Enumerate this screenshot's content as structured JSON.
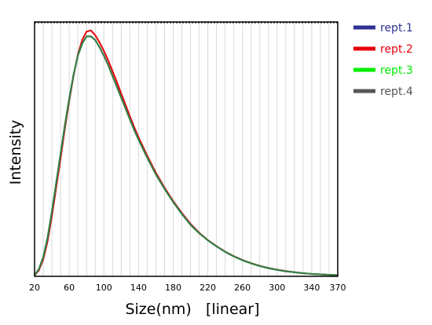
{
  "chart_data": {
    "type": "line",
    "title": "",
    "xlabel": "Size(nm)   [linear]",
    "ylabel": "Intensity",
    "xlim": [
      20,
      370
    ],
    "x_ticks": [
      20,
      60,
      100,
      140,
      180,
      220,
      260,
      300,
      340,
      370
    ],
    "x_grid_step": 10,
    "y_ticks": [],
    "ylim": [
      0,
      1.06
    ],
    "grid": "vertical",
    "legend_position": "right",
    "x": [
      20,
      25,
      30,
      35,
      40,
      45,
      50,
      55,
      60,
      65,
      70,
      75,
      80,
      85,
      90,
      95,
      100,
      105,
      110,
      115,
      120,
      125,
      130,
      135,
      140,
      150,
      160,
      170,
      180,
      190,
      200,
      210,
      220,
      230,
      240,
      250,
      260,
      270,
      280,
      290,
      300,
      310,
      320,
      330,
      340,
      350,
      360,
      370
    ],
    "series": [
      {
        "name": "rept.1",
        "color": "#2e3192",
        "values": [
          0.005,
          0.03,
          0.08,
          0.16,
          0.27,
          0.39,
          0.51,
          0.63,
          0.74,
          0.84,
          0.92,
          0.97,
          1.0,
          1.0,
          0.985,
          0.955,
          0.92,
          0.88,
          0.835,
          0.79,
          0.745,
          0.7,
          0.655,
          0.61,
          0.57,
          0.495,
          0.425,
          0.365,
          0.31,
          0.26,
          0.215,
          0.18,
          0.15,
          0.125,
          0.102,
          0.083,
          0.067,
          0.054,
          0.043,
          0.034,
          0.027,
          0.021,
          0.017,
          0.013,
          0.01,
          0.008,
          0.006,
          0.005
        ]
      },
      {
        "name": "rept.2",
        "color": "#e8000b",
        "values": [
          0.004,
          0.025,
          0.07,
          0.145,
          0.25,
          0.37,
          0.49,
          0.615,
          0.73,
          0.835,
          0.925,
          0.985,
          1.02,
          1.025,
          1.005,
          0.975,
          0.94,
          0.9,
          0.855,
          0.81,
          0.762,
          0.715,
          0.668,
          0.622,
          0.58,
          0.503,
          0.432,
          0.37,
          0.314,
          0.264,
          0.219,
          0.182,
          0.151,
          0.126,
          0.103,
          0.084,
          0.068,
          0.055,
          0.044,
          0.035,
          0.028,
          0.022,
          0.017,
          0.013,
          0.01,
          0.008,
          0.006,
          0.005
        ]
      },
      {
        "name": "rept.3",
        "color": "#00ee00",
        "values": [
          0.005,
          0.03,
          0.08,
          0.16,
          0.27,
          0.39,
          0.51,
          0.63,
          0.74,
          0.84,
          0.92,
          0.97,
          1.0,
          1.0,
          0.985,
          0.955,
          0.92,
          0.88,
          0.835,
          0.79,
          0.745,
          0.7,
          0.655,
          0.61,
          0.57,
          0.495,
          0.425,
          0.365,
          0.31,
          0.26,
          0.215,
          0.18,
          0.15,
          0.125,
          0.102,
          0.083,
          0.067,
          0.054,
          0.043,
          0.034,
          0.027,
          0.021,
          0.017,
          0.013,
          0.01,
          0.008,
          0.006,
          0.005
        ]
      },
      {
        "name": "rept.4",
        "color": "#555555",
        "values": [
          0.005,
          0.03,
          0.08,
          0.16,
          0.27,
          0.39,
          0.51,
          0.63,
          0.74,
          0.84,
          0.92,
          0.97,
          1.0,
          1.0,
          0.985,
          0.955,
          0.92,
          0.88,
          0.835,
          0.79,
          0.745,
          0.7,
          0.655,
          0.61,
          0.57,
          0.495,
          0.425,
          0.365,
          0.31,
          0.26,
          0.215,
          0.18,
          0.15,
          0.125,
          0.102,
          0.083,
          0.067,
          0.054,
          0.043,
          0.034,
          0.027,
          0.021,
          0.017,
          0.013,
          0.01,
          0.008,
          0.006,
          0.005
        ]
      }
    ]
  },
  "colors": {
    "grid": "#d8d8d8",
    "axis": "#000000",
    "last_trace_tint": "#3a7a4a"
  }
}
